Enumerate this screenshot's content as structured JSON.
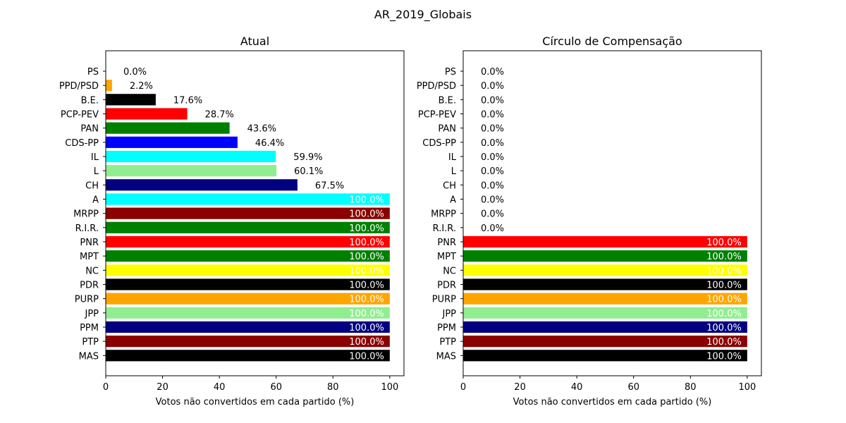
{
  "figure_title": "AR_2019_Globais",
  "chart_data": [
    {
      "type": "bar",
      "orientation": "horizontal",
      "title": "Atual",
      "xlabel": "Votos não convertidos em cada partido (%)",
      "ylabel": "",
      "xlim": [
        0,
        105
      ],
      "xticks": [
        "0",
        "20",
        "40",
        "60",
        "80",
        "100"
      ],
      "categories": [
        "PS",
        "PPD/PSD",
        "B.E.",
        "PCP-PEV",
        "PAN",
        "CDS-PP",
        "IL",
        "L",
        "CH",
        "A",
        "MRPP",
        "R.I.R.",
        "PNR",
        "MPT",
        "NC",
        "PDR",
        "PURP",
        "JPP",
        "PPM",
        "PTP",
        "MAS"
      ],
      "values": [
        0.0,
        2.2,
        17.6,
        28.7,
        43.6,
        46.4,
        59.9,
        60.1,
        67.5,
        100,
        100,
        100,
        100,
        100,
        100,
        100,
        100,
        100,
        100,
        100,
        100
      ],
      "value_labels": [
        "0.0%",
        "2.2%",
        "17.6%",
        "28.7%",
        "43.6%",
        "46.4%",
        "59.9%",
        "60.1%",
        "67.5%",
        "100.0%",
        "100.0%",
        "100.0%",
        "100.0%",
        "100.0%",
        "100.0%",
        "100.0%",
        "100.0%",
        "100.0%",
        "100.0%",
        "100.0%",
        "100.0%"
      ],
      "colors": [
        "#ff7f0e",
        "#ffa500",
        "#000000",
        "#ff0000",
        "#008000",
        "#0000ff",
        "#00ffff",
        "#90ee90",
        "#000080",
        "#00ffff",
        "#8b0000",
        "#008000",
        "#ff0000",
        "#008000",
        "#ffff00",
        "#000000",
        "#ffa500",
        "#90ee90",
        "#000080",
        "#8b0000",
        "#000000"
      ],
      "grid": false,
      "legend": "none"
    },
    {
      "type": "bar",
      "orientation": "horizontal",
      "title": "Círculo de Compensação",
      "xlabel": "Votos não convertidos em cada partido (%)",
      "ylabel": "",
      "xlim": [
        0,
        105
      ],
      "xticks": [
        "0",
        "20",
        "40",
        "60",
        "80",
        "100"
      ],
      "categories": [
        "PS",
        "PPD/PSD",
        "B.E.",
        "PCP-PEV",
        "PAN",
        "CDS-PP",
        "IL",
        "L",
        "CH",
        "A",
        "MRPP",
        "R.I.R.",
        "PNR",
        "MPT",
        "NC",
        "PDR",
        "PURP",
        "JPP",
        "PPM",
        "PTP",
        "MAS"
      ],
      "values": [
        0.0,
        0.0,
        0.0,
        0.0,
        0.0,
        0.0,
        0.0,
        0.0,
        0.0,
        0.0,
        0.0,
        0.0,
        100,
        100,
        100,
        100,
        100,
        100,
        100,
        100,
        100
      ],
      "value_labels": [
        "0.0%",
        "0.0%",
        "0.0%",
        "0.0%",
        "0.0%",
        "0.0%",
        "0.0%",
        "0.0%",
        "0.0%",
        "0.0%",
        "0.0%",
        "0.0%",
        "100.0%",
        "100.0%",
        "100.0%",
        "100.0%",
        "100.0%",
        "100.0%",
        "100.0%",
        "100.0%",
        "100.0%"
      ],
      "colors": [
        "#ff7f0e",
        "#ffa500",
        "#000000",
        "#ff0000",
        "#008000",
        "#0000ff",
        "#00ffff",
        "#90ee90",
        "#000080",
        "#00ffff",
        "#8b0000",
        "#008000",
        "#ff0000",
        "#008000",
        "#ffff00",
        "#000000",
        "#ffa500",
        "#90ee90",
        "#000080",
        "#8b0000",
        "#000000"
      ],
      "grid": false,
      "legend": "none"
    }
  ]
}
